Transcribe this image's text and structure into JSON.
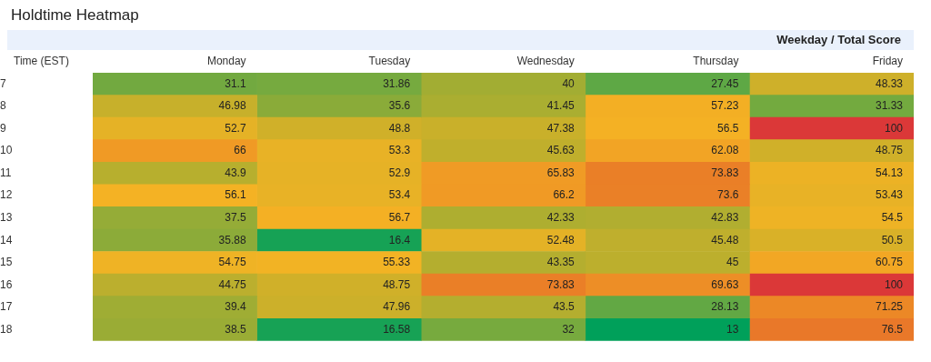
{
  "chart_data": {
    "type": "heatmap",
    "title": "Holdtime Heatmap",
    "xlabel": "Weekday / Total Score",
    "ylabel": "Time (EST)",
    "categories": [
      "Monday",
      "Tuesday",
      "Wednesday",
      "Thursday",
      "Friday"
    ],
    "y_categories": [
      "7",
      "8",
      "9",
      "10",
      "11",
      "12",
      "13",
      "14",
      "15",
      "16",
      "17",
      "18"
    ],
    "cells": [
      [
        31.1,
        31.86,
        40,
        27.45,
        48.33
      ],
      [
        46.98,
        35.6,
        41.45,
        57.23,
        31.33
      ],
      [
        52.7,
        48.8,
        47.38,
        56.5,
        100
      ],
      [
        66,
        53.3,
        45.63,
        62.08,
        48.75
      ],
      [
        43.9,
        52.9,
        65.83,
        73.83,
        54.13
      ],
      [
        56.1,
        53.4,
        66.2,
        73.6,
        53.43
      ],
      [
        37.5,
        56.7,
        42.33,
        42.83,
        54.5
      ],
      [
        35.88,
        16.4,
        52.48,
        45.48,
        50.5
      ],
      [
        54.75,
        55.33,
        43.35,
        45,
        60.75
      ],
      [
        44.75,
        48.75,
        73.83,
        69.63,
        100
      ],
      [
        39.4,
        47.96,
        43.5,
        28.13,
        71.25
      ],
      [
        38.5,
        16.58,
        32,
        13,
        76.5
      ]
    ],
    "data_labels": true
  }
}
